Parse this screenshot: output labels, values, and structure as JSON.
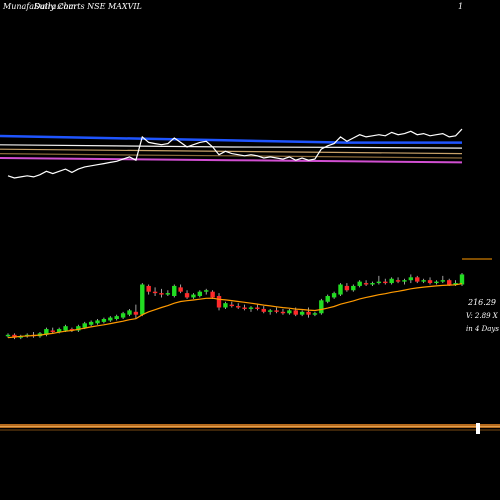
{
  "chart_data": {
    "type": "candlestick",
    "watermark": "MunafaSutra.com",
    "title": "Daily Charts NSE MAXVIL",
    "top_right_mark": "1",
    "price_label": "216.29",
    "volume_label": "V: 2.89 X",
    "date_label": "in 4 Days",
    "ylim_price": [
      175,
      255
    ],
    "candles": [
      {
        "o": 195,
        "h": 197,
        "l": 194,
        "c": 196
      },
      {
        "o": 196,
        "h": 197,
        "l": 193,
        "c": 194
      },
      {
        "o": 194,
        "h": 196,
        "l": 193,
        "c": 195
      },
      {
        "o": 195,
        "h": 197,
        "l": 194,
        "c": 196
      },
      {
        "o": 196,
        "h": 198,
        "l": 194,
        "c": 195
      },
      {
        "o": 195,
        "h": 198,
        "l": 194,
        "c": 197
      },
      {
        "o": 196,
        "h": 201,
        "l": 195,
        "c": 200
      },
      {
        "o": 199,
        "h": 201,
        "l": 197,
        "c": 198
      },
      {
        "o": 198,
        "h": 201,
        "l": 197,
        "c": 200
      },
      {
        "o": 199,
        "h": 203,
        "l": 198,
        "c": 202
      },
      {
        "o": 200,
        "h": 201,
        "l": 198,
        "c": 199
      },
      {
        "o": 199,
        "h": 203,
        "l": 198,
        "c": 202
      },
      {
        "o": 201,
        "h": 205,
        "l": 200,
        "c": 204
      },
      {
        "o": 203,
        "h": 206,
        "l": 202,
        "c": 205
      },
      {
        "o": 204,
        "h": 207,
        "l": 203,
        "c": 206
      },
      {
        "o": 205,
        "h": 208,
        "l": 204,
        "c": 207
      },
      {
        "o": 206,
        "h": 209,
        "l": 205,
        "c": 208
      },
      {
        "o": 207,
        "h": 210,
        "l": 206,
        "c": 209
      },
      {
        "o": 208,
        "h": 212,
        "l": 207,
        "c": 211
      },
      {
        "o": 210,
        "h": 214,
        "l": 209,
        "c": 213
      },
      {
        "o": 212,
        "h": 217,
        "l": 207,
        "c": 210
      },
      {
        "o": 210,
        "h": 232,
        "l": 209,
        "c": 231
      },
      {
        "o": 230,
        "h": 231,
        "l": 224,
        "c": 226
      },
      {
        "o": 226,
        "h": 229,
        "l": 223,
        "c": 225
      },
      {
        "o": 225,
        "h": 228,
        "l": 222,
        "c": 224
      },
      {
        "o": 224,
        "h": 227,
        "l": 223,
        "c": 225
      },
      {
        "o": 223,
        "h": 231,
        "l": 222,
        "c": 230
      },
      {
        "o": 229,
        "h": 231,
        "l": 225,
        "c": 226
      },
      {
        "o": 225,
        "h": 227,
        "l": 221,
        "c": 222
      },
      {
        "o": 222,
        "h": 225,
        "l": 221,
        "c": 224
      },
      {
        "o": 223,
        "h": 227,
        "l": 222,
        "c": 226
      },
      {
        "o": 226,
        "h": 228,
        "l": 224,
        "c": 227
      },
      {
        "o": 226,
        "h": 227,
        "l": 221,
        "c": 222
      },
      {
        "o": 223,
        "h": 225,
        "l": 213,
        "c": 215
      },
      {
        "o": 215,
        "h": 219,
        "l": 214,
        "c": 218
      },
      {
        "o": 217,
        "h": 219,
        "l": 215,
        "c": 216
      },
      {
        "o": 216,
        "h": 218,
        "l": 214,
        "c": 215
      },
      {
        "o": 215,
        "h": 217,
        "l": 213,
        "c": 214
      },
      {
        "o": 214,
        "h": 216,
        "l": 212,
        "c": 215
      },
      {
        "o": 215,
        "h": 217,
        "l": 213,
        "c": 214
      },
      {
        "o": 214,
        "h": 216,
        "l": 211,
        "c": 212
      },
      {
        "o": 212,
        "h": 214,
        "l": 210,
        "c": 213
      },
      {
        "o": 213,
        "h": 215,
        "l": 211,
        "c": 212
      },
      {
        "o": 212,
        "h": 214,
        "l": 210,
        "c": 211
      },
      {
        "o": 211,
        "h": 214,
        "l": 210,
        "c": 213
      },
      {
        "o": 213,
        "h": 215,
        "l": 209,
        "c": 210
      },
      {
        "o": 210,
        "h": 213,
        "l": 209,
        "c": 212
      },
      {
        "o": 212,
        "h": 215,
        "l": 208,
        "c": 210
      },
      {
        "o": 210,
        "h": 212,
        "l": 209,
        "c": 211
      },
      {
        "o": 211,
        "h": 221,
        "l": 210,
        "c": 220
      },
      {
        "o": 219,
        "h": 224,
        "l": 218,
        "c": 223
      },
      {
        "o": 222,
        "h": 226,
        "l": 221,
        "c": 225
      },
      {
        "o": 224,
        "h": 232,
        "l": 223,
        "c": 231
      },
      {
        "o": 230,
        "h": 232,
        "l": 226,
        "c": 227
      },
      {
        "o": 227,
        "h": 231,
        "l": 226,
        "c": 230
      },
      {
        "o": 230,
        "h": 234,
        "l": 229,
        "c": 233
      },
      {
        "o": 232,
        "h": 234,
        "l": 230,
        "c": 231
      },
      {
        "o": 231,
        "h": 233,
        "l": 230,
        "c": 232
      },
      {
        "o": 232,
        "h": 237,
        "l": 231,
        "c": 233
      },
      {
        "o": 233,
        "h": 235,
        "l": 231,
        "c": 232
      },
      {
        "o": 232,
        "h": 236,
        "l": 231,
        "c": 235
      },
      {
        "o": 234,
        "h": 236,
        "l": 232,
        "c": 233
      },
      {
        "o": 233,
        "h": 235,
        "l": 231,
        "c": 234
      },
      {
        "o": 234,
        "h": 238,
        "l": 232,
        "c": 236
      },
      {
        "o": 236,
        "h": 237,
        "l": 232,
        "c": 233
      },
      {
        "o": 233,
        "h": 235,
        "l": 232,
        "c": 234
      },
      {
        "o": 234,
        "h": 236,
        "l": 231,
        "c": 232
      },
      {
        "o": 232,
        "h": 234,
        "l": 231,
        "c": 233
      },
      {
        "o": 233,
        "h": 237,
        "l": 232,
        "c": 234
      },
      {
        "o": 234,
        "h": 235,
        "l": 230,
        "c": 231
      },
      {
        "o": 231,
        "h": 234,
        "l": 230,
        "c": 232
      },
      {
        "o": 231,
        "h": 239,
        "l": 230,
        "c": 238
      }
    ],
    "ema": [
      194,
      194.5,
      195,
      195.2,
      195.5,
      195.8,
      196.5,
      197,
      197.8,
      198.5,
      199,
      199.8,
      200.7,
      201.5,
      202.3,
      203,
      203.8,
      204.6,
      205.5,
      206.5,
      207.2,
      210,
      212,
      213.5,
      215,
      216.3,
      218,
      219.2,
      219.7,
      220.2,
      220.8,
      221.4,
      221.5,
      220.7,
      220.3,
      219.8,
      219.2,
      218.6,
      218,
      217.4,
      216.7,
      216.1,
      215.5,
      214.9,
      214.5,
      213.9,
      213.6,
      213.2,
      212.9,
      213.6,
      214.6,
      215.7,
      217.3,
      218.4,
      219.6,
      221,
      222,
      222.9,
      223.9,
      224.6,
      225.6,
      226.3,
      227.1,
      228,
      228.6,
      229.2,
      229.6,
      230,
      230.4,
      230.6,
      230.8,
      231.6
    ],
    "bands": [
      {
        "color": "#1f55ff",
        "values": [
          225,
          226,
          227,
          228,
          228
        ]
      },
      {
        "color": "#f2f2f2",
        "values": [
          229,
          229.5,
          230,
          230.2,
          230.5
        ]
      },
      {
        "color": "#c8a26a",
        "values": [
          231,
          231.5,
          232,
          232.5,
          233
        ]
      },
      {
        "color": "#8a6a3a",
        "values": [
          233,
          233.6,
          234,
          234.5,
          235
        ]
      },
      {
        "color": "#d14fd1",
        "values": [
          235,
          235.5,
          236,
          236.5,
          237
        ]
      }
    ]
  }
}
